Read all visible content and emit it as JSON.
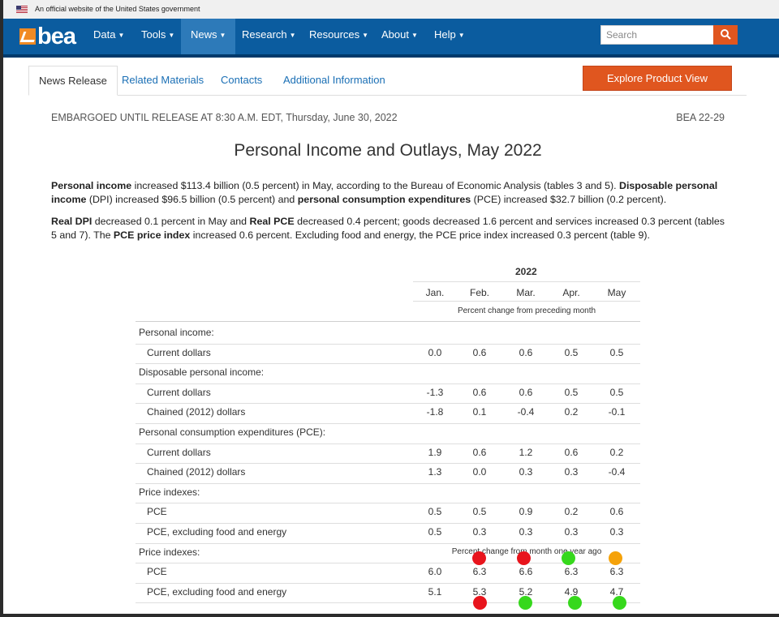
{
  "gov_banner": {
    "text": "An official website of the United States government"
  },
  "nav": {
    "logo_text": "bea",
    "items": [
      {
        "label": "Data"
      },
      {
        "label": "Tools"
      },
      {
        "label": "News"
      },
      {
        "label": "Research"
      },
      {
        "label": "Resources"
      },
      {
        "label": "About"
      },
      {
        "label": "Help"
      }
    ],
    "active": "News",
    "search_placeholder": "Search"
  },
  "tabs": [
    "News Release",
    "Related Materials",
    "Contacts",
    "Additional Information"
  ],
  "explore_button": "Explore Product View",
  "embargo": "EMBARGOED UNTIL RELEASE AT 8:30 A.M. EDT, Thursday, June 30, 2022",
  "release_number": "BEA 22-29",
  "title": "Personal Income and Outlays, May 2022",
  "para1": [
    {
      "b": "Personal income"
    },
    {
      "t": " increased $113.4 billion (0.5 percent) in May, according to the Bureau of Economic Analysis (tables 3 and 5). "
    },
    {
      "b": "Disposable personal income"
    },
    {
      "t": " (DPI) increased $96.5 billion (0.5 percent) and "
    },
    {
      "b": "personal consumption expenditures"
    },
    {
      "t": " (PCE) increased $32.7 billion (0.2 percent)."
    }
  ],
  "para2": [
    {
      "b": "Real DPI"
    },
    {
      "t": " decreased 0.1 percent in May and "
    },
    {
      "b": "Real PCE"
    },
    {
      "t": " decreased 0.4 percent; goods decreased 1.6 percent and services increased 0.3 percent (tables 5 and 7). The "
    },
    {
      "b": "PCE price index"
    },
    {
      "t": " increased 0.6 percent. Excluding food and energy, the PCE price index increased 0.3 percent (table 9)."
    }
  ],
  "table": {
    "year": "2022",
    "months": [
      "Jan.",
      "Feb.",
      "Mar.",
      "Apr.",
      "May"
    ],
    "subheader": "Percent change from preceding month",
    "rows": [
      {
        "label": "Personal income:",
        "indent": false,
        "values": []
      },
      {
        "label": "Current dollars",
        "indent": true,
        "values": [
          "0.0",
          "0.6",
          "0.6",
          "0.5",
          "0.5"
        ]
      },
      {
        "label": "Disposable personal income:",
        "indent": false,
        "values": []
      },
      {
        "label": "Current dollars",
        "indent": true,
        "values": [
          "-1.3",
          "0.6",
          "0.6",
          "0.5",
          "0.5"
        ]
      },
      {
        "label": "Chained (2012) dollars",
        "indent": true,
        "values": [
          "-1.8",
          "0.1",
          "-0.4",
          "0.2",
          "-0.1"
        ]
      },
      {
        "label": "Personal consumption expenditures (PCE):",
        "indent": false,
        "values": []
      },
      {
        "label": "Current dollars",
        "indent": true,
        "values": [
          "1.9",
          "0.6",
          "1.2",
          "0.6",
          "0.2"
        ]
      },
      {
        "label": "Chained (2012) dollars",
        "indent": true,
        "values": [
          "1.3",
          "0.0",
          "0.3",
          "0.3",
          "-0.4"
        ]
      },
      {
        "label": "Price indexes:",
        "indent": false,
        "values": []
      },
      {
        "label": "PCE",
        "indent": true,
        "values": [
          "0.5",
          "0.5",
          "0.9",
          "0.2",
          "0.6"
        ]
      },
      {
        "label": "PCE, excluding food and energy",
        "indent": true,
        "values": [
          "0.5",
          "0.3",
          "0.3",
          "0.3",
          "0.3"
        ]
      },
      {
        "label": "Price indexes:",
        "indent": false,
        "values": [],
        "note": "Percent change from month one year ago"
      },
      {
        "label": "PCE",
        "indent": true,
        "values": [
          "6.0",
          "6.3",
          "6.6",
          "6.3",
          "6.3"
        ]
      },
      {
        "label": "PCE, excluding food and energy",
        "indent": true,
        "values": [
          "5.1",
          "5.3",
          "5.2",
          "4.9",
          "4.7"
        ]
      }
    ]
  },
  "markers": {
    "colors": {
      "red": "#e8141c",
      "green": "#36d81c",
      "orange": "#f5a20a"
    },
    "row_pce_yoy": [
      "red",
      "red",
      "green",
      "orange"
    ],
    "row_pce_core_yoy": [
      "red",
      "green",
      "green",
      "green"
    ]
  },
  "colors": {
    "nav_bg": "#0b5c9f",
    "accent_orange": "#e0561f",
    "link": "#1a6fb5"
  }
}
